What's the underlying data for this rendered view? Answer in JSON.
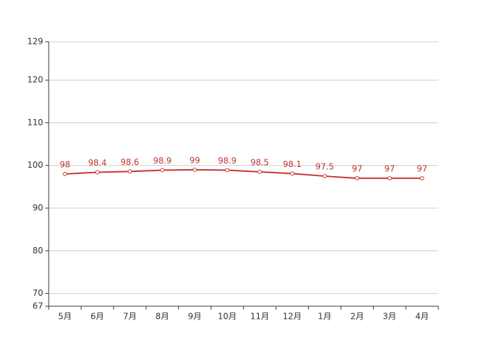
{
  "chart_data": {
    "type": "line",
    "categories": [
      "5月",
      "6月",
      "7月",
      "8月",
      "9月",
      "10月",
      "11月",
      "12月",
      "1月",
      "2月",
      "3月",
      "4月"
    ],
    "values": [
      98,
      98.4,
      98.6,
      98.9,
      99,
      98.9,
      98.5,
      98.1,
      97.5,
      97,
      97,
      97
    ],
    "color": "#c23531",
    "ylim": [
      67,
      129
    ],
    "yticks": [
      67,
      70,
      80,
      90,
      100,
      110,
      120,
      129
    ],
    "grid": true
  }
}
